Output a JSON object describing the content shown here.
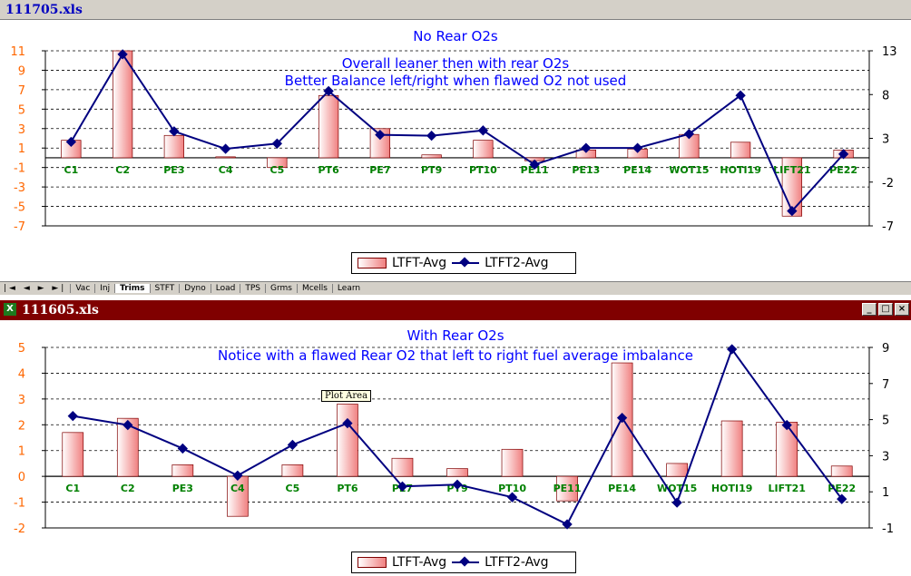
{
  "window1": {
    "title": "111705.xls"
  },
  "window2": {
    "title": "111605.xls",
    "icon": "excel-icon",
    "buttons": [
      "_",
      "□",
      "×"
    ]
  },
  "sheet_tabs": {
    "nav": "|◄ ◄ ► ►|",
    "tabs": [
      "Vac",
      "Inj",
      "Trims",
      "STFT",
      "Dyno",
      "Load",
      "TPS",
      "Grms",
      "Mcells",
      "Learn"
    ],
    "active": "Trims"
  },
  "tooltip": "Plot Area",
  "colors": {
    "left_axis": "#ff6600",
    "categories": "#008000",
    "annotation": "#0000ff",
    "line": "#000080",
    "bar_fill": "#f08080"
  },
  "chart_data": [
    {
      "type": "bar",
      "title": "No Rear O2s",
      "annotations": [
        "Overall leaner then with rear O2s",
        "Better Balance left/right when flawed O2 not used"
      ],
      "categories": [
        "C1",
        "C2",
        "PE3",
        "C4",
        "C5",
        "PT6",
        "PE7",
        "PT9",
        "PT10",
        "PE11",
        "PE13",
        "PE14",
        "WOT15",
        "HOTI19",
        "LIFT21",
        "PE22"
      ],
      "series": [
        {
          "name": "LTFT-Avg",
          "axis": "left",
          "values": [
            1.8,
            11,
            2.3,
            0.1,
            -1,
            6.4,
            3,
            0.3,
            1.8,
            -0.3,
            0.8,
            0.9,
            2.4,
            1.6,
            -6,
            0.8
          ]
        },
        {
          "name": "LTFT2-Avg",
          "axis": "right",
          "values": [
            2.6,
            12.6,
            3.8,
            1.8,
            2.4,
            8.4,
            3.4,
            3.3,
            3.9,
            0,
            1.9,
            1.9,
            3.5,
            7.9,
            -5.3,
            1.2
          ]
        }
      ],
      "left_axis": {
        "min": -7,
        "max": 11,
        "ticks": [
          -7,
          -5,
          -3,
          -1,
          1,
          3,
          5,
          7,
          9,
          11
        ]
      },
      "right_axis": {
        "min": -7,
        "max": 13,
        "ticks": [
          -7,
          -2,
          3,
          8,
          13
        ]
      },
      "grid": true,
      "legend": "bottom"
    },
    {
      "type": "bar",
      "title": "With Rear O2s",
      "annotations": [
        "Notice with a flawed Rear O2 that left to right fuel average imbalance"
      ],
      "categories": [
        "C1",
        "C2",
        "PE3",
        "C4",
        "C5",
        "PT6",
        "PE7",
        "PT9",
        "PT10",
        "PE11",
        "PE14",
        "WOT15",
        "HOTI19",
        "LIFT21",
        "PE22"
      ],
      "series": [
        {
          "name": "LTFT-Avg",
          "axis": "left",
          "values": [
            1.7,
            2.25,
            0.45,
            -1.55,
            0.45,
            2.8,
            0.7,
            0.3,
            1.05,
            -0.95,
            4.4,
            0.5,
            2.15,
            2.1,
            0.4
          ]
        },
        {
          "name": "LTFT2-Avg",
          "axis": "right",
          "values": [
            5.2,
            4.7,
            3.4,
            1.9,
            3.6,
            4.8,
            1.3,
            1.4,
            0.7,
            -0.8,
            5.1,
            0.4,
            8.9,
            4.7,
            0.6
          ]
        }
      ],
      "left_axis": {
        "min": -2,
        "max": 5,
        "ticks": [
          -2,
          -1,
          0,
          1,
          2,
          3,
          4,
          5
        ]
      },
      "right_axis": {
        "min": -1,
        "max": 9,
        "ticks": [
          -1,
          1,
          3,
          5,
          7,
          9
        ]
      },
      "grid": true,
      "legend": "bottom"
    }
  ]
}
